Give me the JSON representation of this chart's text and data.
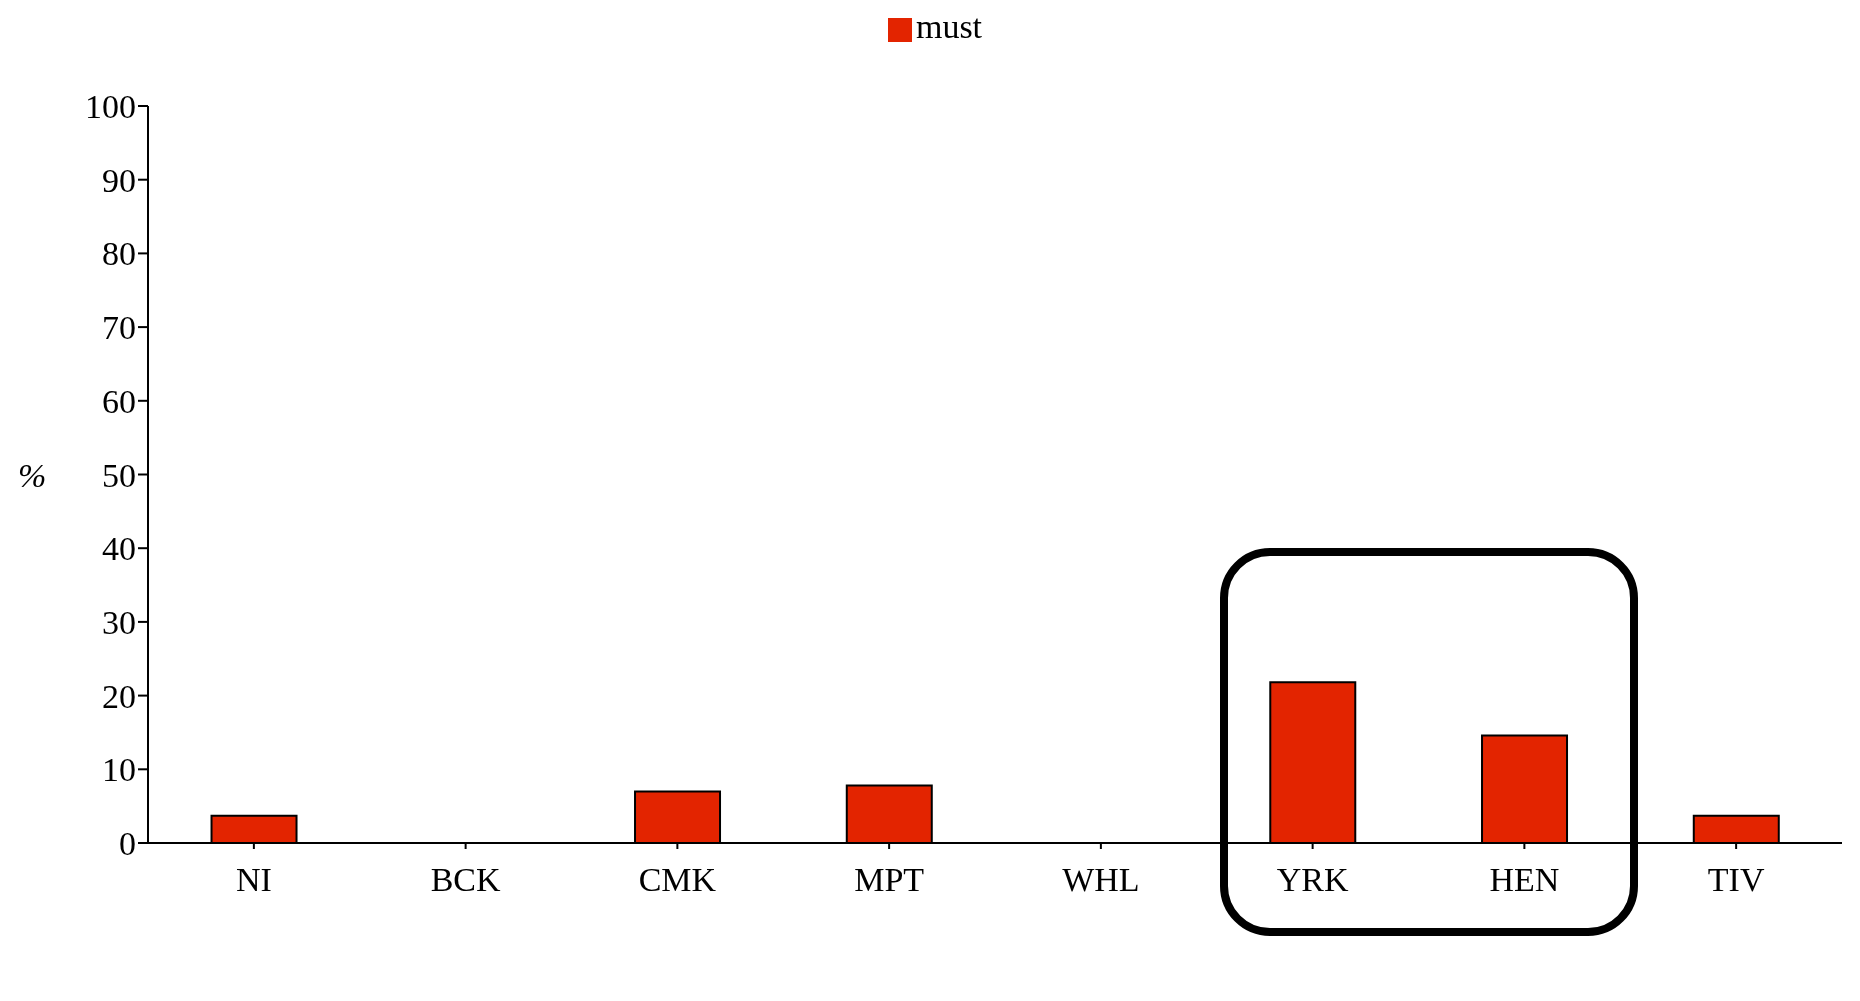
{
  "chart_data": {
    "type": "bar",
    "ylabel": "%",
    "categories": [
      "NI",
      "BCK",
      "CMK",
      "MPT",
      "WHL",
      "YRK",
      "HEN",
      "TIV"
    ],
    "series": [
      {
        "name": "must",
        "color": "#e32400",
        "values": [
          3.7,
          0,
          7,
          7.8,
          0,
          21.8,
          14.6,
          3.7
        ]
      }
    ],
    "ylim": [
      0,
      100
    ],
    "yticks": [
      0,
      10,
      20,
      30,
      40,
      50,
      60,
      70,
      80,
      90,
      100
    ],
    "grid": false,
    "legend": "top"
  }
}
